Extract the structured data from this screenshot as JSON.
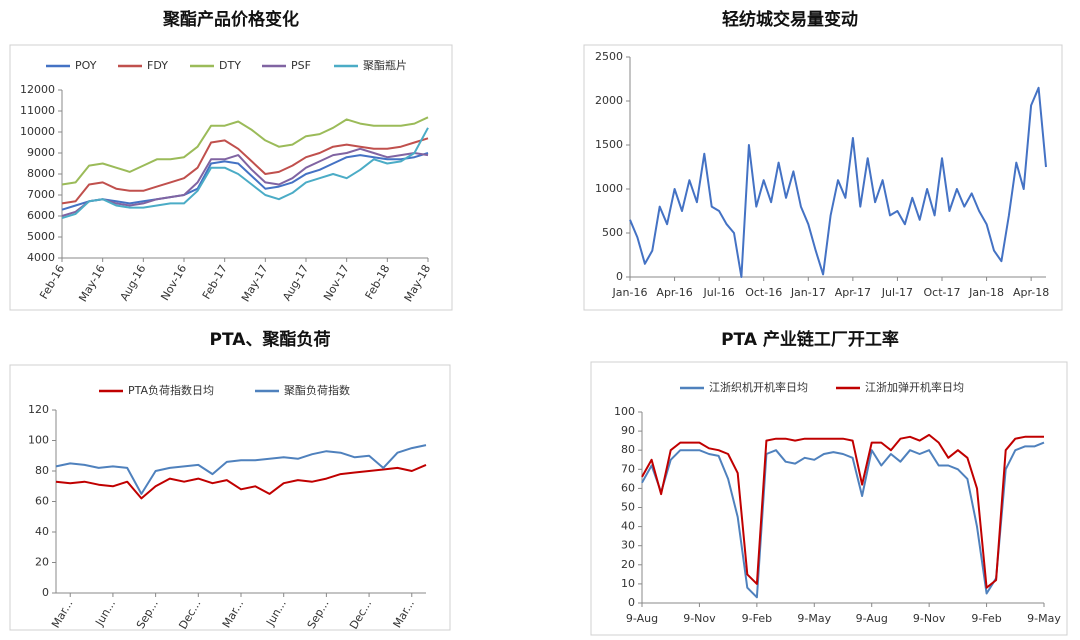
{
  "chart_data": [
    {
      "type": "line",
      "title": "聚酯产品价格变化",
      "categories": [
        "Feb-16",
        null,
        null,
        "May-16",
        null,
        null,
        "Aug-16",
        null,
        null,
        "Nov-16",
        null,
        null,
        "Feb-17",
        null,
        null,
        "May-17",
        null,
        null,
        "Aug-17",
        null,
        null,
        "Nov-17",
        null,
        null,
        "Feb-18",
        null,
        null,
        "May-18"
      ],
      "series": [
        {
          "name": "POY",
          "color": "#4472c4",
          "values": [
            6300,
            6500,
            6700,
            6800,
            6700,
            6600,
            6700,
            6800,
            6900,
            7000,
            7300,
            8500,
            8600,
            8500,
            7900,
            7300,
            7400,
            7600,
            8000,
            8200,
            8500,
            8800,
            8900,
            8800,
            8700,
            8700,
            8800,
            9000
          ]
        },
        {
          "name": "FDY",
          "color": "#c0504d",
          "values": [
            6600,
            6700,
            7500,
            7600,
            7300,
            7200,
            7200,
            7400,
            7600,
            7800,
            8300,
            9500,
            9600,
            9200,
            8600,
            8000,
            8100,
            8400,
            8800,
            9000,
            9300,
            9400,
            9300,
            9200,
            9200,
            9300,
            9500,
            9700
          ]
        },
        {
          "name": "DTY",
          "color": "#9bbb59",
          "values": [
            7500,
            7600,
            8400,
            8500,
            8300,
            8100,
            8400,
            8700,
            8700,
            8800,
            9300,
            10300,
            10300,
            10500,
            10100,
            9600,
            9300,
            9400,
            9800,
            9900,
            10200,
            10600,
            10400,
            10300,
            10300,
            10300,
            10400,
            10700
          ]
        },
        {
          "name": "PSF",
          "color": "#8064a2",
          "values": [
            6000,
            6200,
            6700,
            6800,
            6600,
            6500,
            6600,
            6800,
            6900,
            7000,
            7600,
            8700,
            8700,
            8900,
            8200,
            7600,
            7500,
            7800,
            8300,
            8600,
            8900,
            9000,
            9200,
            9000,
            8800,
            8900,
            9000,
            8900
          ]
        },
        {
          "name": "聚酯瓶片",
          "color": "#4bacc6",
          "values": [
            5900,
            6100,
            6700,
            6800,
            6500,
            6400,
            6400,
            6500,
            6600,
            6600,
            7200,
            8300,
            8300,
            8000,
            7500,
            7000,
            6800,
            7100,
            7600,
            7800,
            8000,
            7800,
            8200,
            8700,
            8500,
            8600,
            9000,
            10200
          ]
        }
      ],
      "ylim": [
        4000,
        12000
      ],
      "yticks": [
        4000,
        5000,
        6000,
        7000,
        8000,
        9000,
        10000,
        11000,
        12000
      ],
      "grid": false,
      "legend": "top"
    },
    {
      "type": "line",
      "title": "轻纺城交易量变动",
      "categories": [
        "Jan-16",
        null,
        null,
        null,
        null,
        null,
        "Apr-16",
        null,
        null,
        null,
        null,
        null,
        "Jul-16",
        null,
        null,
        null,
        null,
        null,
        "Oct-16",
        null,
        null,
        null,
        null,
        null,
        "Jan-17",
        null,
        null,
        null,
        null,
        null,
        "Apr-17",
        null,
        null,
        null,
        null,
        null,
        "Jul-17",
        null,
        null,
        null,
        null,
        null,
        "Oct-17",
        null,
        null,
        null,
        null,
        null,
        "Jan-18",
        null,
        null,
        null,
        null,
        null,
        "Apr-18",
        null,
        null
      ],
      "values": [
        650,
        450,
        150,
        300,
        800,
        600,
        1000,
        750,
        1100,
        850,
        1400,
        800,
        750,
        600,
        500,
        0,
        1500,
        800,
        1100,
        850,
        1300,
        900,
        1200,
        800,
        600,
        300,
        30,
        700,
        1100,
        900,
        1580,
        800,
        1350,
        850,
        1100,
        700,
        750,
        600,
        900,
        650,
        1000,
        700,
        1350,
        750,
        1000,
        800,
        950,
        750,
        600,
        300,
        180,
        700,
        1300,
        1000,
        1950,
        2150,
        1250
      ],
      "color": "#4472c4",
      "ylim": [
        0,
        2500
      ],
      "yticks": [
        0,
        500,
        1000,
        1500,
        2000,
        2500
      ],
      "grid": false
    },
    {
      "type": "line",
      "title": "PTA、聚酯负荷",
      "categories": [
        null,
        "Mar...",
        null,
        null,
        "Jun...",
        null,
        null,
        "Sep...",
        null,
        null,
        "Dec...",
        null,
        null,
        "Mar...",
        null,
        null,
        "Jun...",
        null,
        null,
        "Sep...",
        null,
        null,
        "Dec...",
        null,
        null,
        "Mar...",
        null
      ],
      "series": [
        {
          "name": "PTA负荷指数日均",
          "color": "#c00000",
          "values": [
            73,
            72,
            73,
            71,
            70,
            73,
            62,
            70,
            75,
            73,
            75,
            72,
            74,
            68,
            70,
            65,
            72,
            74,
            73,
            75,
            78,
            79,
            80,
            81,
            82,
            80,
            84
          ]
        },
        {
          "name": "聚酯负荷指数",
          "color": "#4f81bd",
          "values": [
            83,
            85,
            84,
            82,
            83,
            82,
            65,
            80,
            82,
            83,
            84,
            78,
            86,
            87,
            87,
            88,
            89,
            88,
            91,
            93,
            92,
            89,
            90,
            82,
            92,
            95,
            97
          ]
        }
      ],
      "ylim": [
        0,
        120
      ],
      "yticks": [
        0,
        20,
        40,
        60,
        80,
        100,
        120
      ],
      "grid": false,
      "legend": "top"
    },
    {
      "type": "line",
      "title": "PTA 产业链工厂开工率",
      "categories": [
        "9-Aug",
        null,
        null,
        null,
        null,
        null,
        "9-Nov",
        null,
        null,
        null,
        null,
        null,
        "9-Feb",
        null,
        null,
        null,
        null,
        null,
        "9-May",
        null,
        null,
        null,
        null,
        null,
        "9-Aug",
        null,
        null,
        null,
        null,
        null,
        "9-Nov",
        null,
        null,
        null,
        null,
        null,
        "9-Feb",
        null,
        null,
        null,
        null,
        null,
        "9-May"
      ],
      "series": [
        {
          "name": "江浙织机开机率日均",
          "color": "#4f81bd",
          "values": [
            63,
            72,
            58,
            75,
            80,
            80,
            80,
            78,
            77,
            65,
            45,
            8,
            3,
            78,
            80,
            74,
            73,
            76,
            75,
            78,
            79,
            78,
            76,
            56,
            80,
            72,
            78,
            74,
            80,
            78,
            80,
            72,
            72,
            70,
            65,
            40,
            5,
            13,
            70,
            80,
            82,
            82,
            84
          ]
        },
        {
          "name": "江浙加弹开机率日均",
          "color": "#c00000",
          "values": [
            66,
            75,
            57,
            80,
            84,
            84,
            84,
            81,
            80,
            78,
            68,
            15,
            10,
            85,
            86,
            86,
            85,
            86,
            86,
            86,
            86,
            86,
            85,
            62,
            84,
            84,
            80,
            86,
            87,
            85,
            88,
            84,
            76,
            80,
            76,
            60,
            8,
            12,
            80,
            86,
            87,
            87,
            87
          ]
        }
      ],
      "ylim": [
        0,
        100
      ],
      "yticks": [
        0,
        10,
        20,
        30,
        40,
        50,
        60,
        70,
        80,
        90,
        100
      ],
      "grid": false,
      "legend": "top"
    }
  ]
}
